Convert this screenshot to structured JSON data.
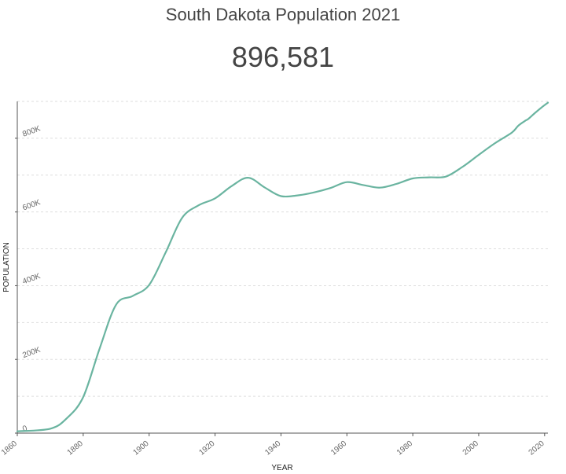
{
  "header": {
    "title": "South Dakota Population 2021",
    "value": "896,581"
  },
  "colors": {
    "line": "#6ab4a0",
    "grid": "#dddddd",
    "axis": "#555555"
  },
  "chart_data": {
    "type": "line",
    "title": "South Dakota Population 2021",
    "xlabel": "YEAR",
    "ylabel": "POPULATION",
    "xlim": [
      1860,
      2021
    ],
    "ylim": [
      0,
      900000
    ],
    "grid": true,
    "x_ticks": [
      {
        "value": 1860,
        "label": "1860"
      },
      {
        "value": 1880,
        "label": "1880"
      },
      {
        "value": 1900,
        "label": "1900"
      },
      {
        "value": 1920,
        "label": "1920"
      },
      {
        "value": 1940,
        "label": "1940"
      },
      {
        "value": 1960,
        "label": "1960"
      },
      {
        "value": 1980,
        "label": "1980"
      },
      {
        "value": 2000,
        "label": "2000"
      },
      {
        "value": 2020,
        "label": "2020"
      }
    ],
    "y_ticks": [
      {
        "value": 0,
        "label": "0"
      },
      {
        "value": 200000,
        "label": "200K"
      },
      {
        "value": 400000,
        "label": "400K"
      },
      {
        "value": 600000,
        "label": "600K"
      },
      {
        "value": 800000,
        "label": "800K"
      }
    ],
    "series": [
      {
        "x": [
          1860,
          1870,
          1875,
          1880,
          1885,
          1890,
          1895,
          1900,
          1905,
          1910,
          1915,
          1920,
          1925,
          1930,
          1935,
          1940,
          1945,
          1950,
          1955,
          1960,
          1965,
          1970,
          1975,
          1980,
          1985,
          1990,
          1995,
          2000,
          2005,
          2010,
          2012,
          2014,
          2015,
          2017,
          2019,
          2021
        ],
        "y": [
          5000,
          12000,
          40000,
          98000,
          230000,
          349000,
          372000,
          402000,
          490000,
          584000,
          618000,
          637000,
          670000,
          693000,
          667000,
          643000,
          645000,
          653000,
          665000,
          681000,
          673000,
          666000,
          676000,
          691000,
          694000,
          696000,
          722000,
          755000,
          787000,
          815000,
          834000,
          847000,
          852000,
          868000,
          883000,
          896581
        ]
      }
    ]
  }
}
